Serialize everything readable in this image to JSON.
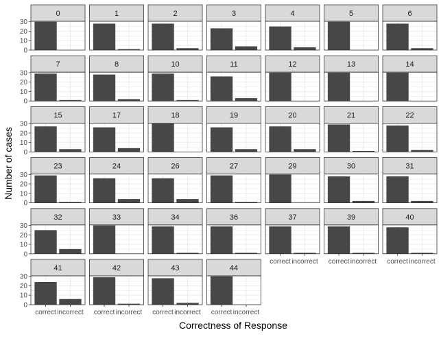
{
  "chart_data": {
    "type": "bar",
    "layout": "faceted small multiples, 7 columns",
    "xlabel": "Correctness of Response",
    "ylabel": "Number of cases",
    "categories": [
      "correct",
      "incorrect"
    ],
    "ylim": [
      0,
      30.5
    ],
    "yticks": [
      0,
      10,
      20,
      30
    ],
    "grid": true,
    "bar_color": "#474747",
    "strip_color": "#d9d9d9",
    "panel_background": "#ffffff",
    "gridline_color": "#ebebeb",
    "panels": [
      {
        "label": "0",
        "values": [
          30,
          0
        ]
      },
      {
        "label": "1",
        "values": [
          28,
          1
        ]
      },
      {
        "label": "2",
        "values": [
          28,
          2
        ]
      },
      {
        "label": "3",
        "values": [
          23,
          4
        ]
      },
      {
        "label": "4",
        "values": [
          25,
          3
        ]
      },
      {
        "label": "5",
        "values": [
          30,
          0
        ]
      },
      {
        "label": "6",
        "values": [
          28,
          2
        ]
      },
      {
        "label": "7",
        "values": [
          29,
          1
        ]
      },
      {
        "label": "8",
        "values": [
          28,
          2
        ]
      },
      {
        "label": "10",
        "values": [
          29,
          1
        ]
      },
      {
        "label": "11",
        "values": [
          26,
          3
        ]
      },
      {
        "label": "12",
        "values": [
          30,
          0
        ]
      },
      {
        "label": "13",
        "values": [
          30,
          0
        ]
      },
      {
        "label": "14",
        "values": [
          30,
          0
        ]
      },
      {
        "label": "15",
        "values": [
          27,
          3
        ]
      },
      {
        "label": "17",
        "values": [
          26,
          4
        ]
      },
      {
        "label": "18",
        "values": [
          30,
          0
        ]
      },
      {
        "label": "19",
        "values": [
          26,
          3
        ]
      },
      {
        "label": "20",
        "values": [
          27,
          3
        ]
      },
      {
        "label": "21",
        "values": [
          29,
          1
        ]
      },
      {
        "label": "22",
        "values": [
          28,
          2
        ]
      },
      {
        "label": "23",
        "values": [
          29,
          1
        ]
      },
      {
        "label": "24",
        "values": [
          26,
          4
        ]
      },
      {
        "label": "26",
        "values": [
          26,
          4
        ]
      },
      {
        "label": "27",
        "values": [
          29,
          1
        ]
      },
      {
        "label": "29",
        "values": [
          30,
          0
        ]
      },
      {
        "label": "30",
        "values": [
          28,
          2
        ]
      },
      {
        "label": "31",
        "values": [
          28,
          2
        ]
      },
      {
        "label": "32",
        "values": [
          25,
          5
        ]
      },
      {
        "label": "33",
        "values": [
          30,
          0
        ]
      },
      {
        "label": "34",
        "values": [
          29,
          1
        ]
      },
      {
        "label": "36",
        "values": [
          29,
          1
        ]
      },
      {
        "label": "37",
        "values": [
          29,
          1
        ]
      },
      {
        "label": "39",
        "values": [
          29,
          1
        ]
      },
      {
        "label": "40",
        "values": [
          28,
          1
        ]
      },
      {
        "label": "41",
        "values": [
          24,
          6
        ]
      },
      {
        "label": "42",
        "values": [
          29,
          1
        ]
      },
      {
        "label": "43",
        "values": [
          28,
          2
        ]
      },
      {
        "label": "44",
        "values": [
          30,
          0
        ]
      }
    ]
  }
}
